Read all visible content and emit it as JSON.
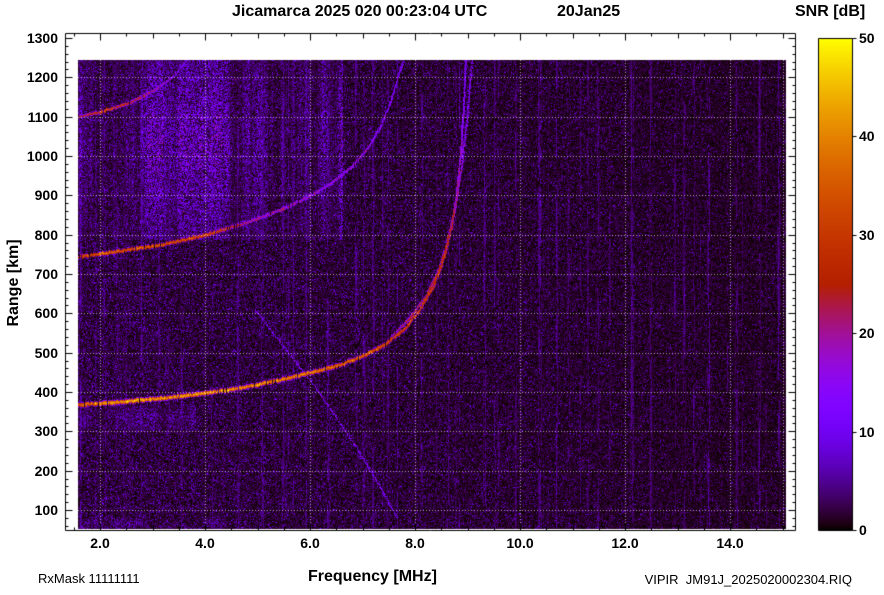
{
  "header": {
    "title": "Jicamarca 2025 020 00:23:04 UTC",
    "date": "20Jan25"
  },
  "axes": {
    "x": {
      "label": "Frequency [MHz]",
      "min": 1.33,
      "max": 15.24,
      "tick_values": [
        2,
        4,
        6,
        8,
        10,
        12,
        14
      ],
      "tick_labels": [
        "2.0",
        "4.0",
        "6.0",
        "8.0",
        "10.0",
        "12.0",
        "14.0"
      ],
      "grid_values": [
        2,
        4,
        6,
        8,
        10,
        12,
        14,
        15
      ],
      "minor_step": 0.5
    },
    "y": {
      "label": "Range [km]",
      "min": 49,
      "max": 1313,
      "tick_values": [
        100,
        200,
        300,
        400,
        500,
        600,
        700,
        800,
        900,
        1000,
        1100,
        1200,
        1300
      ],
      "tick_labels": [
        "100",
        "200",
        "300",
        "400",
        "500",
        "600",
        "700",
        "800",
        "900",
        "1000",
        "1100",
        "1200",
        "1300"
      ],
      "minor_step": 20
    }
  },
  "colorbar": {
    "label": "SNR [dB]",
    "min": 0,
    "max": 50,
    "tick_values": [
      0,
      10,
      20,
      30,
      40,
      50
    ],
    "tick_labels": [
      "0",
      "10",
      "20",
      "30",
      "40",
      "50"
    ],
    "colormap_stops": [
      "#000000",
      "#5a00a8",
      "#8202f2",
      "#a412a0",
      "#c63c00",
      "#e87f00",
      "#ffe000"
    ]
  },
  "footer": {
    "rx_mask": "RxMask 11111111",
    "file_label": "VIPIR  JM91J_2025020002304.RIQ"
  },
  "chart_data": {
    "type": "heatmap",
    "title": "Jicamarca ionogram, 2025 day 020, 00:23:04 UTC (20Jan25)",
    "xlabel": "Frequency [MHz]",
    "ylabel": "Range [km]",
    "zlabel": "SNR [dB]",
    "xlim": [
      1.33,
      15.24
    ],
    "ylim": [
      49,
      1313
    ],
    "zlim": [
      0,
      50
    ],
    "data_extent": {
      "freq": [
        1.58,
        15.05
      ],
      "range": [
        52,
        1244
      ]
    },
    "colormap": "gnuplot-style black-violet-red-orange-yellow",
    "background_noise_db": 2,
    "critical_frequency_foF2_mhz": 8.9,
    "traces": [
      {
        "name": "first-hop F-region echo (O-mode)",
        "thickness": 5,
        "points": [
          [
            1.58,
            368,
            33
          ],
          [
            2.0,
            372,
            40
          ],
          [
            2.5,
            377,
            41
          ],
          [
            3.0,
            383,
            42
          ],
          [
            3.5,
            390,
            41
          ],
          [
            4.0,
            398,
            41
          ],
          [
            4.5,
            408,
            40
          ],
          [
            5.0,
            420,
            40
          ],
          [
            5.5,
            434,
            39
          ],
          [
            6.0,
            450,
            38
          ],
          [
            6.5,
            468,
            36
          ],
          [
            7.0,
            492,
            34
          ],
          [
            7.4,
            520,
            32
          ],
          [
            7.8,
            562,
            30
          ],
          [
            8.1,
            612,
            29
          ],
          [
            8.35,
            672,
            29
          ],
          [
            8.55,
            745,
            27
          ],
          [
            8.7,
            825,
            23
          ],
          [
            8.8,
            915,
            19
          ],
          [
            8.87,
            1015,
            15
          ],
          [
            8.92,
            1125,
            12
          ],
          [
            8.96,
            1244,
            10
          ]
        ]
      },
      {
        "name": "first-hop F-region echo (X-mode)",
        "thickness": 3,
        "points": [
          [
            7.55,
            545,
            20
          ],
          [
            7.9,
            588,
            23
          ],
          [
            8.2,
            645,
            24
          ],
          [
            8.45,
            712,
            23
          ],
          [
            8.62,
            790,
            21
          ],
          [
            8.77,
            875,
            18
          ],
          [
            8.88,
            970,
            15
          ],
          [
            8.97,
            1075,
            12
          ],
          [
            9.04,
            1185,
            10
          ],
          [
            9.08,
            1244,
            9
          ]
        ]
      },
      {
        "name": "second-hop F-region echo",
        "thickness": 4.5,
        "points": [
          [
            1.58,
            745,
            29
          ],
          [
            2.0,
            752,
            34
          ],
          [
            2.5,
            762,
            35
          ],
          [
            3.0,
            772,
            34
          ],
          [
            3.5,
            785,
            33
          ],
          [
            4.0,
            800,
            32
          ],
          [
            4.3,
            812,
            29
          ],
          [
            4.7,
            828,
            21
          ],
          [
            5.0,
            842,
            20
          ],
          [
            5.5,
            868,
            19
          ],
          [
            6.0,
            900,
            18
          ],
          [
            6.4,
            932,
            17
          ],
          [
            6.8,
            975,
            16
          ],
          [
            7.1,
            1022,
            14
          ],
          [
            7.35,
            1078,
            13
          ],
          [
            7.55,
            1145,
            12
          ],
          [
            7.7,
            1215,
            10
          ],
          [
            7.78,
            1244,
            9
          ]
        ]
      },
      {
        "name": "third-hop F-region echo",
        "thickness": 3.5,
        "points": [
          [
            1.58,
            1100,
            22
          ],
          [
            1.9,
            1110,
            28
          ],
          [
            2.2,
            1120,
            28
          ],
          [
            2.5,
            1133,
            26
          ],
          [
            2.8,
            1152,
            22
          ],
          [
            3.1,
            1175,
            18
          ],
          [
            3.4,
            1205,
            14
          ],
          [
            3.65,
            1244,
            11
          ]
        ]
      },
      {
        "name": "oblique slant echo",
        "thickness": 1.8,
        "points": [
          [
            4.95,
            610,
            10
          ],
          [
            5.5,
            515,
            11
          ],
          [
            6.0,
            430,
            11
          ],
          [
            6.45,
            345,
            11
          ],
          [
            6.95,
            245,
            10
          ],
          [
            7.35,
            155,
            10
          ],
          [
            7.65,
            80,
            9
          ]
        ]
      }
    ],
    "diffuse_regions": [
      {
        "name": "spread-F backscatter cloud",
        "freq": [
          1.6,
          6.6
        ],
        "range": [
          790,
          1244
        ],
        "snr_db": 13
      },
      {
        "name": "underside spread near F trace",
        "freq": [
          1.6,
          3.8
        ],
        "range": [
          300,
          365
        ],
        "snr_db": 7
      },
      {
        "name": "near-range noise band",
        "freq": [
          1.6,
          4.4
        ],
        "range": [
          52,
          75
        ],
        "snr_db": 7
      }
    ],
    "rfi_stripes": [
      {
        "freq": 1.62,
        "snr_db": 7
      },
      {
        "freq": 2.08,
        "snr_db": 6
      },
      {
        "freq": 2.32,
        "snr_db": 5
      },
      {
        "freq": 2.78,
        "snr_db": 6
      },
      {
        "freq": 3.12,
        "snr_db": 5
      },
      {
        "freq": 3.55,
        "snr_db": 5
      },
      {
        "freq": 4.12,
        "snr_db": 5
      },
      {
        "freq": 4.62,
        "snr_db": 6
      },
      {
        "freq": 5.08,
        "snr_db": 5
      },
      {
        "freq": 5.58,
        "snr_db": 5
      },
      {
        "freq": 5.92,
        "snr_db": 6
      },
      {
        "freq": 6.35,
        "snr_db": 5
      },
      {
        "freq": 7.02,
        "snr_db": 6
      },
      {
        "freq": 7.48,
        "snr_db": 5
      },
      {
        "freq": 8.12,
        "snr_db": 6
      },
      {
        "freq": 8.62,
        "snr_db": 5
      },
      {
        "freq": 9.32,
        "snr_db": 6
      },
      {
        "freq": 9.58,
        "snr_db": 5
      },
      {
        "freq": 10.38,
        "snr_db": 6
      },
      {
        "freq": 10.92,
        "snr_db": 5
      },
      {
        "freq": 11.48,
        "snr_db": 5
      },
      {
        "freq": 12.12,
        "snr_db": 6
      },
      {
        "freq": 12.48,
        "snr_db": 5
      },
      {
        "freq": 13.12,
        "snr_db": 5
      },
      {
        "freq": 13.58,
        "snr_db": 6
      },
      {
        "freq": 14.12,
        "snr_db": 5
      },
      {
        "freq": 14.55,
        "snr_db": 5
      },
      {
        "freq": 14.92,
        "snr_db": 6
      }
    ]
  }
}
